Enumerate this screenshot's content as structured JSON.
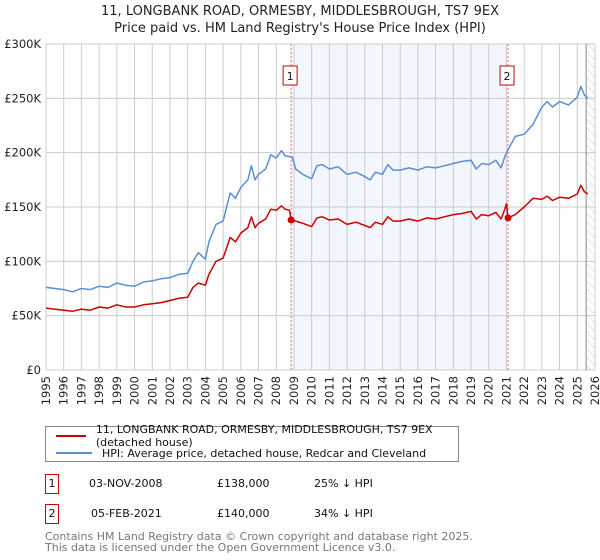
{
  "chart_data": {
    "type": "line",
    "title": "11, LONGBANK ROAD, ORMESBY, MIDDLESBROUGH, TS7 9EX",
    "subtitle": "Price paid vs. HM Land Registry's House Price Index (HPI)",
    "xlim": [
      1995,
      2026
    ],
    "ylim": [
      0,
      300000
    ],
    "x_ticks": [
      "1995",
      "1996",
      "1997",
      "1998",
      "1999",
      "2000",
      "2001",
      "2002",
      "2003",
      "2004",
      "2005",
      "2006",
      "2007",
      "2008",
      "2009",
      "2010",
      "2011",
      "2012",
      "2013",
      "2014",
      "2015",
      "2016",
      "2017",
      "2018",
      "2019",
      "2020",
      "2021",
      "2022",
      "2023",
      "2024",
      "2025",
      "2026"
    ],
    "y_ticks": [
      {
        "v": 0,
        "label": "£0"
      },
      {
        "v": 50000,
        "label": "£50K"
      },
      {
        "v": 100000,
        "label": "£100K"
      },
      {
        "v": 150000,
        "label": "£150K"
      },
      {
        "v": 200000,
        "label": "£200K"
      },
      {
        "v": 250000,
        "label": "£250K"
      },
      {
        "v": 300000,
        "label": "£300K"
      }
    ],
    "grid": true,
    "shaded_range": [
      2008.84,
      2021.09
    ],
    "forecast_hatch_from": 2025.5,
    "series": [
      {
        "name": "11, LONGBANK ROAD, ORMESBY, MIDDLESBROUGH, TS7 9EX (detached house)",
        "color": "#cc0000",
        "points": [
          [
            1995,
            57
          ],
          [
            1996,
            55
          ],
          [
            1996.5,
            54
          ],
          [
            1997,
            56
          ],
          [
            1997.5,
            55
          ],
          [
            1998,
            58
          ],
          [
            1998.5,
            57
          ],
          [
            1999,
            60
          ],
          [
            1999.5,
            58
          ],
          [
            2000,
            58
          ],
          [
            2000.5,
            60
          ],
          [
            2001,
            61
          ],
          [
            2001.5,
            62
          ],
          [
            2002,
            64
          ],
          [
            2002.5,
            66
          ],
          [
            2003,
            67
          ],
          [
            2003.3,
            76
          ],
          [
            2003.6,
            80
          ],
          [
            2004,
            78
          ],
          [
            2004.2,
            88
          ],
          [
            2004.6,
            100
          ],
          [
            2005,
            103
          ],
          [
            2005.4,
            122
          ],
          [
            2005.7,
            118
          ],
          [
            2006,
            126
          ],
          [
            2006.4,
            131
          ],
          [
            2006.6,
            141
          ],
          [
            2006.8,
            131
          ],
          [
            2007,
            135
          ],
          [
            2007.4,
            139
          ],
          [
            2007.7,
            148
          ],
          [
            2008,
            147
          ],
          [
            2008.3,
            151
          ],
          [
            2008.5,
            148
          ],
          [
            2008.75,
            147
          ],
          [
            2008.84,
            138
          ],
          [
            2009.1,
            137
          ],
          [
            2009.5,
            135
          ],
          [
            2010,
            132
          ],
          [
            2010.3,
            140
          ],
          [
            2010.6,
            141
          ],
          [
            2011,
            138
          ],
          [
            2011.5,
            139
          ],
          [
            2012,
            134
          ],
          [
            2012.5,
            136
          ],
          [
            2013,
            133
          ],
          [
            2013.3,
            131
          ],
          [
            2013.6,
            136
          ],
          [
            2014,
            134
          ],
          [
            2014.3,
            141
          ],
          [
            2014.6,
            137
          ],
          [
            2015,
            137
          ],
          [
            2015.5,
            139
          ],
          [
            2016,
            137
          ],
          [
            2016.5,
            140
          ],
          [
            2017,
            139
          ],
          [
            2017.5,
            141
          ],
          [
            2018,
            143
          ],
          [
            2018.5,
            144
          ],
          [
            2019,
            146
          ],
          [
            2019.3,
            139
          ],
          [
            2019.6,
            143
          ],
          [
            2020,
            142
          ],
          [
            2020.4,
            145
          ],
          [
            2020.7,
            139
          ],
          [
            2020.9,
            148
          ],
          [
            2021.0,
            153
          ],
          [
            2021.09,
            140
          ],
          [
            2021.5,
            143
          ],
          [
            2022,
            150
          ],
          [
            2022.5,
            158
          ],
          [
            2023,
            157
          ],
          [
            2023.3,
            160
          ],
          [
            2023.6,
            156
          ],
          [
            2024,
            159
          ],
          [
            2024.5,
            158
          ],
          [
            2025,
            162
          ],
          [
            2025.2,
            170
          ],
          [
            2025.4,
            164
          ],
          [
            2025.6,
            162
          ]
        ]
      },
      {
        "name": "HPI: Average price, detached house, Redcar and Cleveland",
        "color": "#5b8fd4",
        "points": [
          [
            1995,
            76
          ],
          [
            1996,
            74
          ],
          [
            1996.5,
            72
          ],
          [
            1997,
            75
          ],
          [
            1997.5,
            74
          ],
          [
            1998,
            77
          ],
          [
            1998.5,
            76
          ],
          [
            1999,
            80
          ],
          [
            1999.5,
            78
          ],
          [
            2000,
            77
          ],
          [
            2000.5,
            81
          ],
          [
            2001,
            82
          ],
          [
            2001.5,
            84
          ],
          [
            2002,
            85
          ],
          [
            2002.5,
            88
          ],
          [
            2003,
            89
          ],
          [
            2003.3,
            100
          ],
          [
            2003.6,
            108
          ],
          [
            2004,
            102
          ],
          [
            2004.2,
            118
          ],
          [
            2004.6,
            134
          ],
          [
            2005,
            137
          ],
          [
            2005.4,
            163
          ],
          [
            2005.7,
            158
          ],
          [
            2006,
            168
          ],
          [
            2006.4,
            175
          ],
          [
            2006.6,
            188
          ],
          [
            2006.8,
            175
          ],
          [
            2007,
            180
          ],
          [
            2007.4,
            185
          ],
          [
            2007.7,
            198
          ],
          [
            2008,
            195
          ],
          [
            2008.3,
            202
          ],
          [
            2008.5,
            197
          ],
          [
            2008.9,
            196
          ],
          [
            2009.1,
            185
          ],
          [
            2009.5,
            180
          ],
          [
            2010,
            176
          ],
          [
            2010.3,
            188
          ],
          [
            2010.6,
            189
          ],
          [
            2011,
            185
          ],
          [
            2011.5,
            187
          ],
          [
            2012,
            180
          ],
          [
            2012.5,
            182
          ],
          [
            2013,
            178
          ],
          [
            2013.3,
            175
          ],
          [
            2013.6,
            182
          ],
          [
            2014,
            180
          ],
          [
            2014.3,
            189
          ],
          [
            2014.6,
            184
          ],
          [
            2015,
            184
          ],
          [
            2015.5,
            186
          ],
          [
            2016,
            184
          ],
          [
            2016.5,
            187
          ],
          [
            2017,
            186
          ],
          [
            2017.5,
            188
          ],
          [
            2018,
            190
          ],
          [
            2018.5,
            192
          ],
          [
            2019,
            193
          ],
          [
            2019.3,
            185
          ],
          [
            2019.6,
            190
          ],
          [
            2020,
            189
          ],
          [
            2020.4,
            193
          ],
          [
            2020.7,
            186
          ],
          [
            2020.9,
            196
          ],
          [
            2021.1,
            203
          ],
          [
            2021.5,
            215
          ],
          [
            2022,
            217
          ],
          [
            2022.5,
            226
          ],
          [
            2023,
            242
          ],
          [
            2023.3,
            247
          ],
          [
            2023.6,
            242
          ],
          [
            2024,
            247
          ],
          [
            2024.5,
            244
          ],
          [
            2025,
            251
          ],
          [
            2025.2,
            261
          ],
          [
            2025.4,
            253
          ],
          [
            2025.6,
            250
          ]
        ]
      }
    ],
    "y_unit": "thousand GBP",
    "markers": [
      {
        "label": "1",
        "x": 2008.84,
        "y": 138
      },
      {
        "label": "2",
        "x": 2021.09,
        "y": 140
      }
    ]
  },
  "legend": {
    "property": "11, LONGBANK ROAD, ORMESBY, MIDDLESBROUGH, TS7 9EX (detached house)",
    "hpi": "HPI: Average price, detached house, Redcar and Cleveland"
  },
  "sales": [
    {
      "num": "1",
      "date": "03-NOV-2008",
      "price": "£138,000",
      "hpi": "25% ↓ HPI"
    },
    {
      "num": "2",
      "date": "05-FEB-2021",
      "price": "£140,000",
      "hpi": "34% ↓ HPI"
    }
  ],
  "footer": {
    "line1": "Contains HM Land Registry data © Crown copyright and database right 2025.",
    "line2": "This data is licensed under the Open Government Licence v3.0."
  }
}
